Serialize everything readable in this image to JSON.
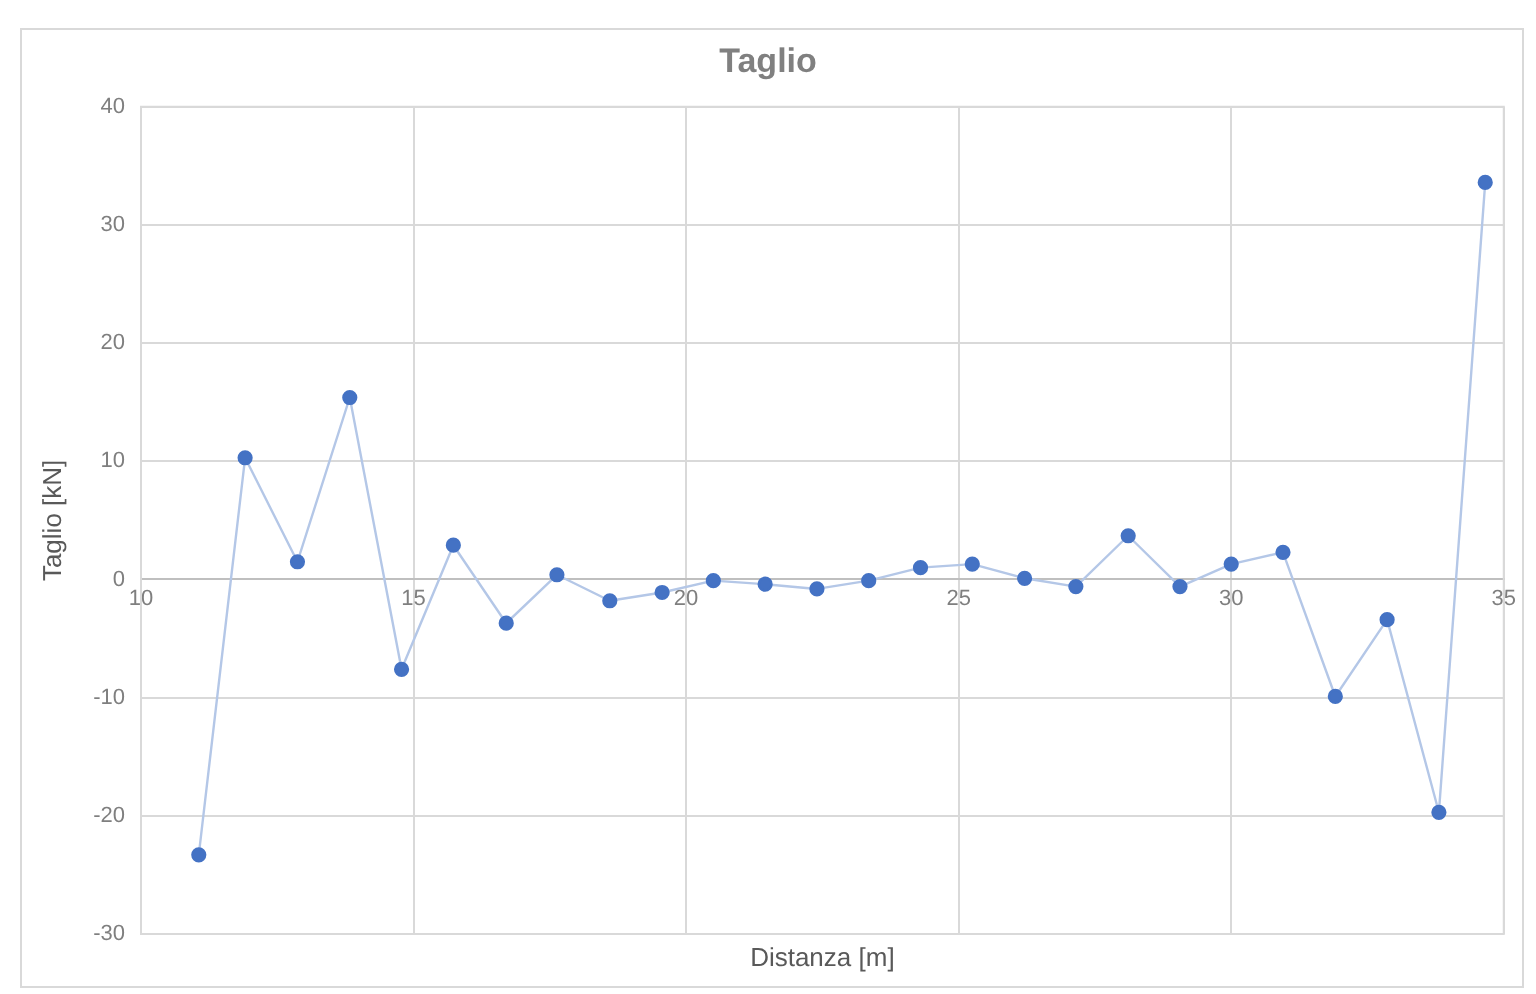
{
  "chart_data": {
    "type": "line",
    "title": "Taglio",
    "xlabel": "Distanza [m]",
    "ylabel": "Taglio [kN]",
    "x": [
      11.06,
      11.91,
      12.87,
      13.83,
      14.78,
      15.73,
      16.7,
      17.63,
      18.6,
      19.56,
      20.5,
      21.45,
      22.4,
      23.35,
      24.3,
      25.25,
      26.21,
      27.15,
      28.11,
      29.06,
      30.0,
      30.95,
      31.91,
      32.86,
      33.81,
      34.66
    ],
    "series": [
      {
        "color": "#4472c4",
        "values": [
          -23.3,
          10.3,
          1.5,
          15.4,
          -7.6,
          2.9,
          -3.7,
          0.4,
          -1.8,
          -1.1,
          -0.1,
          -0.4,
          -0.8,
          -0.1,
          1.0,
          1.3,
          0.1,
          -0.6,
          3.7,
          -0.6,
          1.3,
          2.3,
          -9.9,
          -3.4,
          -19.7,
          33.6
        ]
      }
    ],
    "xlim": [
      10,
      35
    ],
    "xticks": [
      10,
      15,
      20,
      25,
      30,
      35
    ],
    "ylim": [
      -30,
      40
    ],
    "yticks": [
      -30,
      -20,
      -10,
      0,
      10,
      20,
      30,
      40
    ],
    "grid": true,
    "legend": false,
    "marker": "circle",
    "line_style": "solid"
  }
}
